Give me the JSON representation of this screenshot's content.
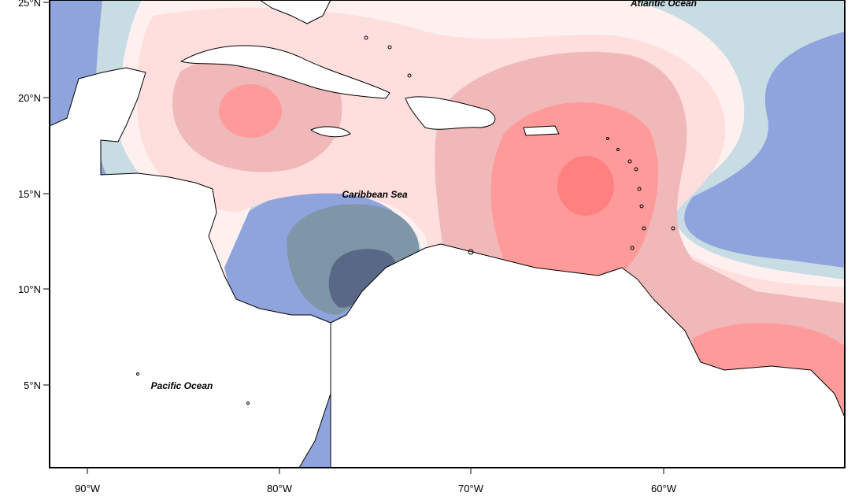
{
  "map": {
    "latitude_labels": [
      "25°N",
      "20°N",
      "15°N",
      "10°N",
      "5°N"
    ],
    "longitude_labels": [
      "90°W",
      "80°W",
      "70°W",
      "60°W"
    ],
    "place_labels": {
      "atlantic": "Atlantic Ocean",
      "caribbean": "Caribbean Sea",
      "pacific": "Pacific Ocean"
    },
    "colors": {
      "strong_negative": "#5a6888",
      "negative": "#7e96a8",
      "mild_negative": "#8fa4dc",
      "weak_negative": "#c8dce4",
      "neutral": "#fff0f0",
      "weak_positive": "#ffdede",
      "mild_positive": "#f0b8b8",
      "positive": "#ff9a9a",
      "strong_positive": "#ff8080"
    }
  }
}
